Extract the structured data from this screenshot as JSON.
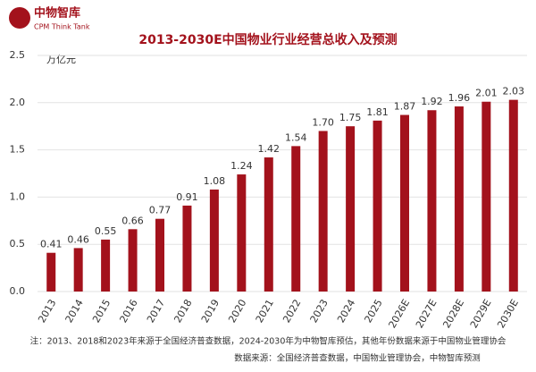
{
  "brand": {
    "name": "中物智库",
    "subtitle": "CPM Think Tank"
  },
  "chart_data": {
    "type": "bar",
    "title": "2013-2030E中国物业行业经营总收入及预测",
    "y_axis_label": "万亿元",
    "categories": [
      "2013",
      "2014",
      "2015",
      "2016",
      "2017",
      "2018",
      "2019",
      "2020",
      "2021",
      "2022",
      "2023",
      "2024",
      "2025",
      "2026E",
      "2027E",
      "2028E",
      "2029E",
      "2030E"
    ],
    "values": [
      0.41,
      0.46,
      0.55,
      0.66,
      0.77,
      0.91,
      1.08,
      1.24,
      1.42,
      1.54,
      1.7,
      1.75,
      1.81,
      1.87,
      1.92,
      1.96,
      2.01,
      2.03
    ],
    "value_labels": [
      "0.41",
      "0.46",
      "0.55",
      "0.66",
      "0.77",
      "0.91",
      "1.08",
      "1.24",
      "1.42",
      "1.54",
      "1.70",
      "1.75",
      "1.81",
      "1.87",
      "1.92",
      "1.96",
      "2.01",
      "2.03"
    ],
    "color": "#a3121c",
    "ylim": [
      0,
      2.5
    ],
    "yticks": [
      {
        "value": 0,
        "label": "0.0"
      },
      0.5,
      {
        "value": 1,
        "label": "1.0"
      },
      1.5,
      {
        "value": 2,
        "label": "2.0"
      },
      2.5
    ],
    "grid": true,
    "notes": [
      "注：2013、2018和2023年来源于全国经济普查数据，2024-2030年为中物智库预估，其他年份数据来源于中国物业管理协会",
      "数据来源：全国经济普查数据，中国物业管理协会，中物智库预测"
    ]
  }
}
